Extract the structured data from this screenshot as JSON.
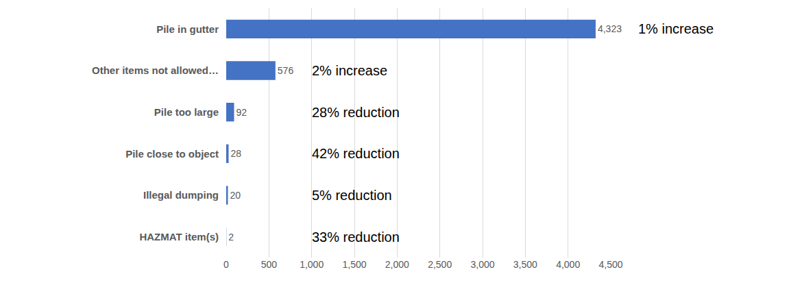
{
  "chart_data": {
    "type": "bar",
    "orientation": "horizontal",
    "categories": [
      "Pile in gutter",
      "Other items not allowed…",
      "Pile too large",
      "Pile close to object",
      "Illegal dumping",
      "HAZMAT item(s)"
    ],
    "values": [
      4323,
      576,
      92,
      28,
      20,
      2
    ],
    "value_labels": [
      "4,323",
      "576",
      "92",
      "28",
      "20",
      "2"
    ],
    "color": "#4472c4",
    "xlim": [
      0,
      4500
    ],
    "xticks": [
      0,
      500,
      {
        "value": 1000,
        "label": "1,000"
      },
      {
        "value": 1500,
        "label": "1,500"
      },
      {
        "value": 2000,
        "label": "2,000"
      },
      {
        "value": 2500,
        "label": "2,500"
      },
      {
        "value": 3000,
        "label": "3,000"
      },
      {
        "value": 3500,
        "label": "3,500"
      },
      {
        "value": 4000,
        "label": "4,000"
      },
      {
        "value": 4500,
        "label": "4,500"
      }
    ],
    "grid": true,
    "data_labels": true,
    "annotations": [
      {
        "category": "Pile in gutter",
        "text": "1% increase"
      },
      {
        "category": "Other items not allowed…",
        "text": "2% increase"
      },
      {
        "category": "Pile too large",
        "text": "28% reduction"
      },
      {
        "category": "Pile close to object",
        "text": "42% reduction"
      },
      {
        "category": "Illegal dumping",
        "text": "5% reduction"
      },
      {
        "category": "HAZMAT item(s)",
        "text": "33% reduction"
      }
    ]
  }
}
